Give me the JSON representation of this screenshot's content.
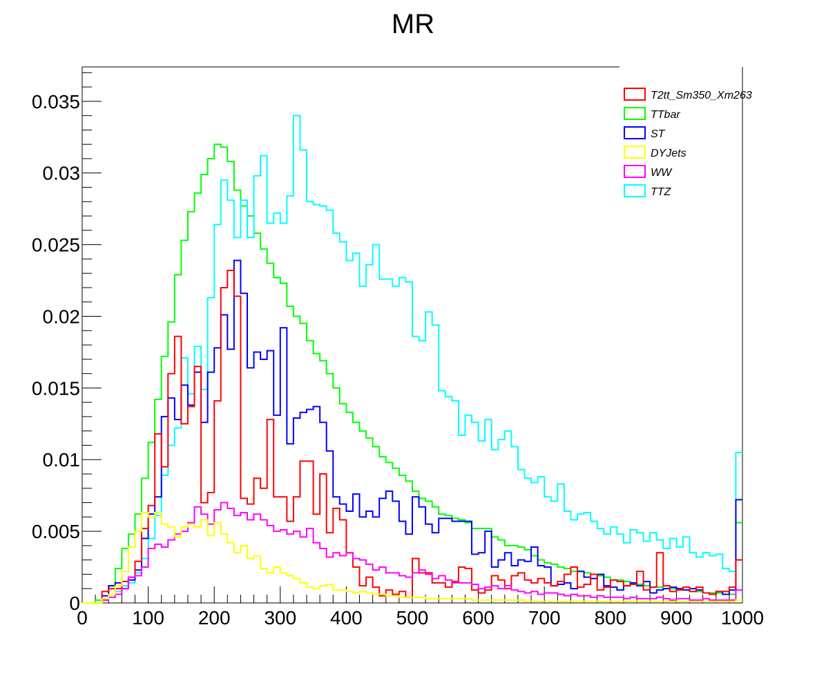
{
  "chart_data": {
    "type": "line",
    "title": "MR",
    "xlabel": "",
    "ylabel": "",
    "xlim": [
      0,
      1000
    ],
    "ylim": [
      0,
      0.0374
    ],
    "bin_width": 10,
    "grid": false,
    "legend_position": "top-right",
    "x_ticks": [
      "0",
      "100",
      "200",
      "300",
      "400",
      "500",
      "600",
      "700",
      "800",
      "900",
      "1000"
    ],
    "y_ticks": [
      "0",
      "0.005",
      "0.01",
      "0.015",
      "0.02",
      "0.025",
      "0.03",
      "0.035"
    ],
    "series": [
      {
        "name": "TTbar",
        "color": "#00ff00",
        "values": [
          0,
          0,
          0.0002,
          0.0005,
          0.0012,
          0.0024,
          0.0038,
          0.0048,
          0.0062,
          0.0087,
          0.0112,
          0.0142,
          0.0172,
          0.0196,
          0.0229,
          0.0253,
          0.0273,
          0.0286,
          0.0299,
          0.031,
          0.032,
          0.0318,
          0.0308,
          0.0288,
          0.0277,
          0.027,
          0.0258,
          0.0247,
          0.0237,
          0.0227,
          0.0223,
          0.0207,
          0.02,
          0.0195,
          0.0183,
          0.0174,
          0.0169,
          0.016,
          0.015,
          0.0139,
          0.0133,
          0.0126,
          0.012,
          0.0115,
          0.0109,
          0.0102,
          0.0098,
          0.0094,
          0.0089,
          0.0085,
          0.0078,
          0.0073,
          0.0071,
          0.0067,
          0.0062,
          0.0061,
          0.0059,
          0.0058,
          0.0056,
          0.0052,
          0.0052,
          0.0052,
          0.0046,
          0.0044,
          0.004,
          0.004,
          0.0039,
          0.0037,
          0.0033,
          0.003,
          0.0028,
          0.0027,
          0.0025,
          0.0024,
          0.0022,
          0.0022,
          0.0021,
          0.002,
          0.0019,
          0.0018,
          0.0016,
          0.0016,
          0.0015,
          0.0014,
          0.0013,
          0.0012,
          0.0011,
          0.0011,
          0.001,
          0.001,
          0.0009,
          0.0009,
          0.0008,
          0.0008,
          0.0007,
          0.0007,
          0.0007,
          0.0006,
          0.0006,
          0.0056
        ]
      },
      {
        "name": "TTZ",
        "color": "#00ffff",
        "values": [
          0,
          0,
          0,
          0.0002,
          0.0004,
          0.0008,
          0.0012,
          0.0014,
          0.0021,
          0.0031,
          0.0045,
          0.0061,
          0.0089,
          0.011,
          0.0122,
          0.0171,
          0.0146,
          0.0179,
          0.0149,
          0.0213,
          0.0264,
          0.0295,
          0.0281,
          0.0255,
          0.0281,
          0.0255,
          0.0298,
          0.0312,
          0.0265,
          0.0272,
          0.0265,
          0.0284,
          0.034,
          0.0316,
          0.028,
          0.0278,
          0.0277,
          0.0274,
          0.0258,
          0.0252,
          0.0239,
          0.0244,
          0.0221,
          0.0236,
          0.025,
          0.0226,
          0.0226,
          0.0221,
          0.0227,
          0.0224,
          0.0186,
          0.0183,
          0.0203,
          0.0194,
          0.0148,
          0.0144,
          0.0141,
          0.0117,
          0.0131,
          0.0126,
          0.0113,
          0.0128,
          0.0107,
          0.0114,
          0.012,
          0.0109,
          0.0093,
          0.0087,
          0.0084,
          0.0088,
          0.0074,
          0.0071,
          0.0083,
          0.0064,
          0.0058,
          0.0062,
          0.0063,
          0.0057,
          0.0052,
          0.0048,
          0.0053,
          0.0048,
          0.0042,
          0.0051,
          0.0049,
          0.0043,
          0.0049,
          0.0044,
          0.0038,
          0.0045,
          0.0039,
          0.0046,
          0.0035,
          0.0032,
          0.0035,
          0.0033,
          0.0034,
          0.0024,
          0.0022,
          0.0105
        ]
      },
      {
        "name": "ST",
        "color": "#0000ff",
        "values": [
          0,
          0,
          0,
          0.0005,
          0.0012,
          0.0014,
          0.001,
          0.0016,
          0.0023,
          0.0045,
          0.0062,
          0.0074,
          0.013,
          0.0143,
          0.0128,
          0.0152,
          0.0138,
          0.0161,
          0.0126,
          0.0161,
          0.0178,
          0.0201,
          0.0177,
          0.0239,
          0.0216,
          0.0164,
          0.0175,
          0.017,
          0.0176,
          0.0131,
          0.0192,
          0.0111,
          0.0129,
          0.0133,
          0.0135,
          0.0137,
          0.0126,
          0.0106,
          0.0074,
          0.0069,
          0.0064,
          0.0076,
          0.006,
          0.0064,
          0.006,
          0.0073,
          0.0078,
          0.0071,
          0.0057,
          0.0048,
          0.0074,
          0.0067,
          0.0055,
          0.0049,
          0.0059,
          0.0059,
          0.0057,
          0.0057,
          0.0057,
          0.0034,
          0.0035,
          0.005,
          0.0025,
          0.003,
          0.0035,
          0.0026,
          0.003,
          0.0029,
          0.0039,
          0.0026,
          0.0025,
          0.0012,
          0.0013,
          0.0014,
          0.001,
          0.0022,
          0.0018,
          0.0017,
          0.002,
          0.0012,
          0.0011,
          0.0009,
          0.0012,
          0.0014,
          0.0012,
          0.0015,
          0.0007,
          0.0009,
          0.001,
          0.0011,
          0.001,
          0.0009,
          0.001,
          0.0009,
          0.0007,
          0.0006,
          0.0008,
          0.0006,
          0.0009,
          0.0072
        ]
      },
      {
        "name": "T2tt_Sm350_Xm263",
        "color": "#ff0000",
        "values": [
          0,
          0,
          0,
          0.0008,
          0.001,
          0.001,
          0.0015,
          0.0018,
          0.0029,
          0.0052,
          0.0068,
          0.0118,
          0.0095,
          0.016,
          0.0186,
          0.0125,
          0.0137,
          0.0165,
          0.007,
          0.0077,
          0.0141,
          0.022,
          0.0232,
          0.0214,
          0.0073,
          0.0069,
          0.0087,
          0.008,
          0.0128,
          0.0074,
          0.0074,
          0.0057,
          0.0074,
          0.0099,
          0.0099,
          0.0062,
          0.009,
          0.0049,
          0.0066,
          0.0058,
          0.0035,
          0.0025,
          0.0012,
          0.0018,
          0.0011,
          0.0005,
          0.0009,
          0.0006,
          0.0008,
          0.0004,
          0.0031,
          0.0021,
          0.0021,
          0.0014,
          0.0014,
          0.0011,
          0.0015,
          0.0025,
          0.0024,
          0.0009,
          0.0007,
          0.0009,
          0.0019,
          0.0016,
          0.001,
          0.0019,
          0.0021,
          0.0016,
          0.0014,
          0.0017,
          0.0014,
          0.0012,
          0.0015,
          0.002,
          0.0025,
          0.0011,
          0.0013,
          0.002,
          0.0009,
          0.0011,
          0.0016,
          0.0015,
          0.0012,
          0.0013,
          0.0022,
          0.0009,
          0.0011,
          0.0035,
          0.0012,
          0.0008,
          0.0009,
          0.0011,
          0.0008,
          0.0011,
          0.0007,
          0.0006,
          0.0008,
          0.0008,
          0.0011,
          0.003
        ]
      },
      {
        "name": "WW",
        "color": "#ff00ff",
        "values": [
          0,
          0,
          0,
          0.0002,
          0.0004,
          0.0006,
          0.001,
          0.0018,
          0.0019,
          0.0025,
          0.0038,
          0.0041,
          0.0039,
          0.0044,
          0.0048,
          0.005,
          0.0056,
          0.0067,
          0.0062,
          0.0055,
          0.0065,
          0.007,
          0.0066,
          0.0061,
          0.0063,
          0.0058,
          0.0062,
          0.0058,
          0.0054,
          0.005,
          0.0051,
          0.0048,
          0.005,
          0.0046,
          0.0052,
          0.0042,
          0.0038,
          0.0032,
          0.0035,
          0.0033,
          0.0035,
          0.0031,
          0.003,
          0.0027,
          0.0023,
          0.0025,
          0.0021,
          0.0021,
          0.0019,
          0.0018,
          0.0021,
          0.0023,
          0.002,
          0.0017,
          0.0019,
          0.0016,
          0.0014,
          0.0014,
          0.0014,
          0.0013,
          0.001,
          0.0011,
          0.0012,
          0.001,
          0.0012,
          0.0009,
          0.0008,
          0.0007,
          0.0008,
          0.0006,
          0.0007,
          0.0007,
          0.0006,
          0.0005,
          0.0006,
          0.0005,
          0.0005,
          0.0004,
          0.0005,
          0.0004,
          0.0004,
          0.0004,
          0.0003,
          0.0004,
          0.0003,
          0.0003,
          0.0003,
          0.0004,
          0.0003,
          0.0002,
          0.0003,
          0.0003,
          0.0002,
          0.0002,
          0.0003,
          0.0002,
          0.0002,
          0.0002,
          0.0002,
          0.0009
        ]
      },
      {
        "name": "DYJets",
        "color": "#ffff00",
        "values": [
          0,
          0,
          0,
          0.0003,
          0.0006,
          0.0012,
          0.0022,
          0.0039,
          0.005,
          0.0063,
          0.006,
          0.0063,
          0.0055,
          0.0053,
          0.0046,
          0.0053,
          0.0055,
          0.0053,
          0.0058,
          0.0047,
          0.0056,
          0.0048,
          0.0042,
          0.0035,
          0.004,
          0.0031,
          0.0033,
          0.0024,
          0.0021,
          0.0025,
          0.0021,
          0.0019,
          0.0017,
          0.0014,
          0.0011,
          0.001,
          0.0012,
          0.0013,
          0.0009,
          0.0009,
          0.0008,
          0.0007,
          0.0008,
          0.0007,
          0.0006,
          0.0006,
          0.0005,
          0.0005,
          0.0004,
          0.0004,
          0.0004,
          0.0004,
          0.0003,
          0.0003,
          0.0003,
          0.0003,
          0.0003,
          0.0003,
          0.0003,
          0.0002,
          0.0002,
          0.0002,
          0.0002,
          0.0002,
          0.0002,
          0.0002,
          0.0002,
          0.0001,
          0.0001,
          0.0001,
          0.0001,
          0.0001,
          0.0001,
          0.0001,
          0.0001,
          0.0001,
          0.0001,
          0.0001,
          0.0001,
          0.0001,
          0.0001,
          0.0001,
          0.0001,
          0.0001,
          0.0001,
          0.0001,
          0.0001,
          0.0001,
          0.0001,
          0.0001,
          0.0001,
          0.0001,
          0.0001,
          0.0001,
          0.0001,
          0.0001,
          0.0001,
          0.0001,
          0.0001,
          0.0002
        ]
      }
    ],
    "legend_order": [
      "T2tt_Sm350_Xm263",
      "TTbar",
      "ST",
      "DYJets",
      "WW",
      "TTZ"
    ]
  }
}
